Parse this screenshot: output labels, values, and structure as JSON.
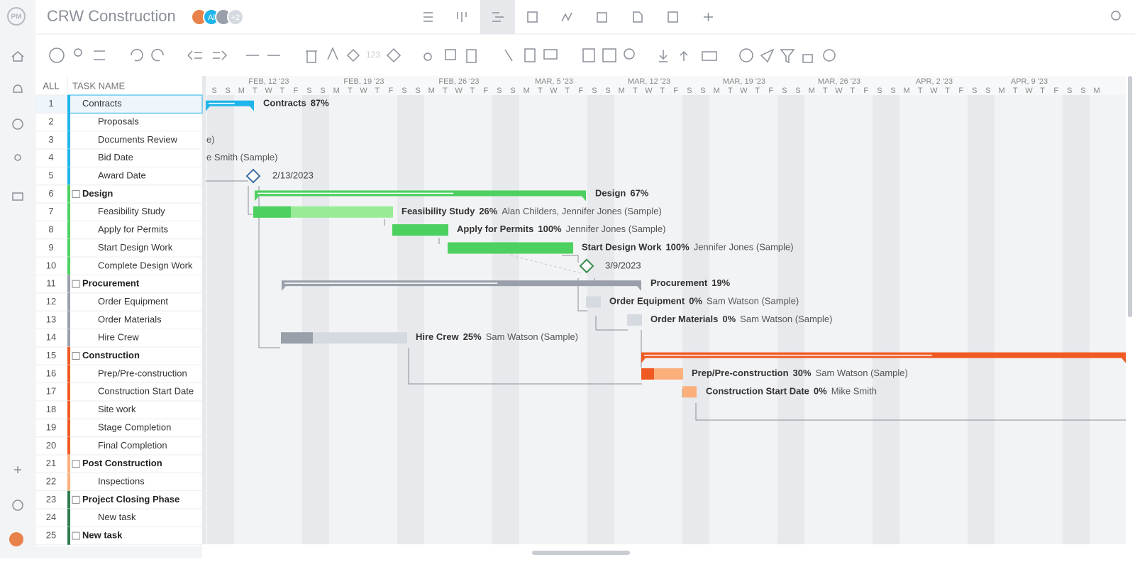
{
  "header": {
    "logo": "PM",
    "title": "CRW Construction",
    "avatar_initials": "Al",
    "avatar_more": "+2"
  },
  "toolbar": {
    "number_label": "123"
  },
  "table": {
    "columns": [
      "ALL",
      "TASK NAME"
    ],
    "rows": [
      {
        "id": "1",
        "name": "Contracts"
      },
      {
        "id": "2",
        "name": "Proposals"
      },
      {
        "id": "3",
        "name": "Documents Review"
      },
      {
        "id": "4",
        "name": "Bid Date"
      },
      {
        "id": "5",
        "name": "Award Date"
      },
      {
        "id": "6",
        "name": "Design"
      },
      {
        "id": "7",
        "name": "Feasibility Study"
      },
      {
        "id": "8",
        "name": "Apply for Permits"
      },
      {
        "id": "9",
        "name": "Start Design Work"
      },
      {
        "id": "10",
        "name": "Complete Design Work"
      },
      {
        "id": "11",
        "name": "Procurement"
      },
      {
        "id": "12",
        "name": "Order Equipment"
      },
      {
        "id": "13",
        "name": "Order Materials"
      },
      {
        "id": "14",
        "name": "Hire Crew"
      },
      {
        "id": "15",
        "name": "Construction"
      },
      {
        "id": "16",
        "name": "Prep/Pre-construction"
      },
      {
        "id": "17",
        "name": "Construction Start Date"
      },
      {
        "id": "18",
        "name": "Site work"
      },
      {
        "id": "19",
        "name": "Stage Completion"
      },
      {
        "id": "20",
        "name": "Final Completion"
      },
      {
        "id": "21",
        "name": "Post Construction"
      },
      {
        "id": "22",
        "name": "Inspections"
      },
      {
        "id": "23",
        "name": "Project Closing Phase"
      },
      {
        "id": "24",
        "name": "New task"
      },
      {
        "id": "25",
        "name": "New task"
      }
    ]
  },
  "timeline": {
    "weeks": [
      "FEB, 12 '23",
      "FEB, 19 '23",
      "FEB, 26 '23",
      "MAR, 5 '23",
      "MAR, 12 '23",
      "MAR, 19 '23",
      "MAR, 26 '23",
      "APR, 2 '23",
      "APR, 9 '23"
    ],
    "day_letters": [
      "S",
      "S",
      "M",
      "T",
      "W",
      "T",
      "F"
    ]
  },
  "gantt": {
    "labels": [
      {
        "percent": "87%"
      },
      {
        "percent": "67%"
      },
      {
        "percent": "26%",
        "assignee": "Alan Childers, Jennifer Jones (Sample)"
      },
      {
        "percent": "100%",
        "assignee": "Jennifer Jones (Sample)"
      },
      {
        "percent": "100%",
        "assignee": "Jennifer Jones (Sample)"
      },
      {
        "percent": "19%"
      },
      {
        "percent": "0%",
        "assignee": "Sam Watson (Sample)"
      },
      {
        "percent": "0%",
        "assignee": "Sam Watson (Sample)"
      },
      {
        "percent": "25%",
        "assignee": "Sam Watson (Sample)"
      },
      {
        "percent": "30%",
        "assignee": "Sam Watson (Sample)"
      },
      {
        "percent": "0%",
        "assignee": "Mike Smith"
      }
    ],
    "dates": [
      "2/13/2023",
      "3/9/2023"
    ],
    "clipped": [
      "e)",
      "e Smith (Sample)"
    ]
  }
}
